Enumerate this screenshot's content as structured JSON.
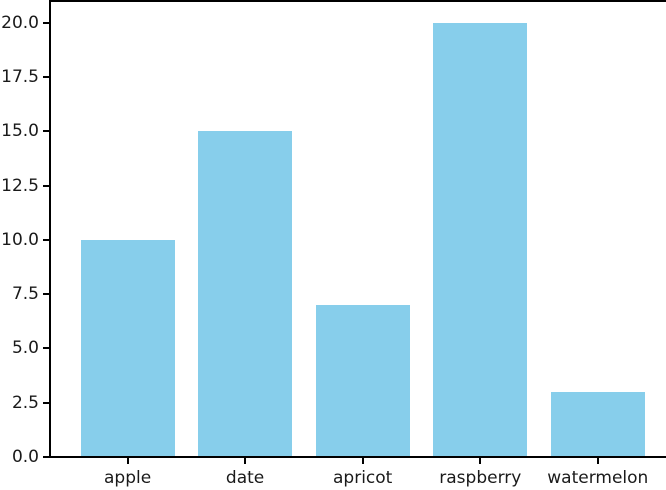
{
  "chart_data": {
    "type": "bar",
    "title": "",
    "xlabel": "",
    "ylabel": "",
    "categories": [
      "apple",
      "date",
      "apricot",
      "raspberry",
      "watermelon"
    ],
    "values": [
      10,
      15,
      7,
      20,
      3
    ],
    "bar_color": "#87CEEB",
    "bar_width": 0.8,
    "ylim": [
      0,
      21
    ],
    "xlim": [
      -0.66,
      4.58
    ],
    "yticks": [
      0.0,
      2.5,
      5.0,
      7.5,
      10.0,
      12.5,
      15.0,
      17.5,
      20.0
    ],
    "ytick_labels": [
      "0.0",
      "2.5",
      "5.0",
      "7.5",
      "10.0",
      "12.5",
      "15.0",
      "17.5",
      "20.0"
    ],
    "grid": false,
    "legend": false,
    "text_color": "#1a1a1a",
    "spine_color": "#000000",
    "background_color": "#ffffff"
  }
}
